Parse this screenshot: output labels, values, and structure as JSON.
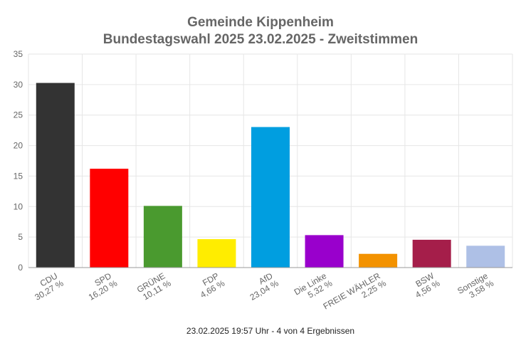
{
  "chart_data": {
    "type": "bar",
    "title": "Gemeinde Kippenheim",
    "subtitle": "Bundestagswahl 2025 23.02.2025  - Zweitstimmen",
    "categories": [
      "CDU",
      "SPD",
      "GRÜNE",
      "FDP",
      "AfD",
      "Die Linke",
      "FREIE WÄHLER",
      "BSW",
      "Sonstige"
    ],
    "value_labels": [
      "30,27 %",
      "16,20 %",
      "10,11 %",
      "4,66 %",
      "23,04 %",
      "5,32 %",
      "2,25 %",
      "4,56 %",
      "3,58 %"
    ],
    "values": [
      30.27,
      16.2,
      10.11,
      4.66,
      23.04,
      5.32,
      2.25,
      4.56,
      3.58
    ],
    "colors": [
      "#333333",
      "#ff0000",
      "#4a9a2f",
      "#ffed00",
      "#009ee0",
      "#9900cc",
      "#f39200",
      "#a51e4a",
      "#aec0e6"
    ],
    "ylim": [
      0,
      35
    ],
    "yticks": [
      "0",
      "5",
      "10",
      "15",
      "20",
      "25",
      "30",
      "35"
    ],
    "grid": true,
    "xlabel": "",
    "ylabel": ""
  },
  "footer": "23.02.2025 19:57 Uhr - 4 von 4 Ergebnissen"
}
